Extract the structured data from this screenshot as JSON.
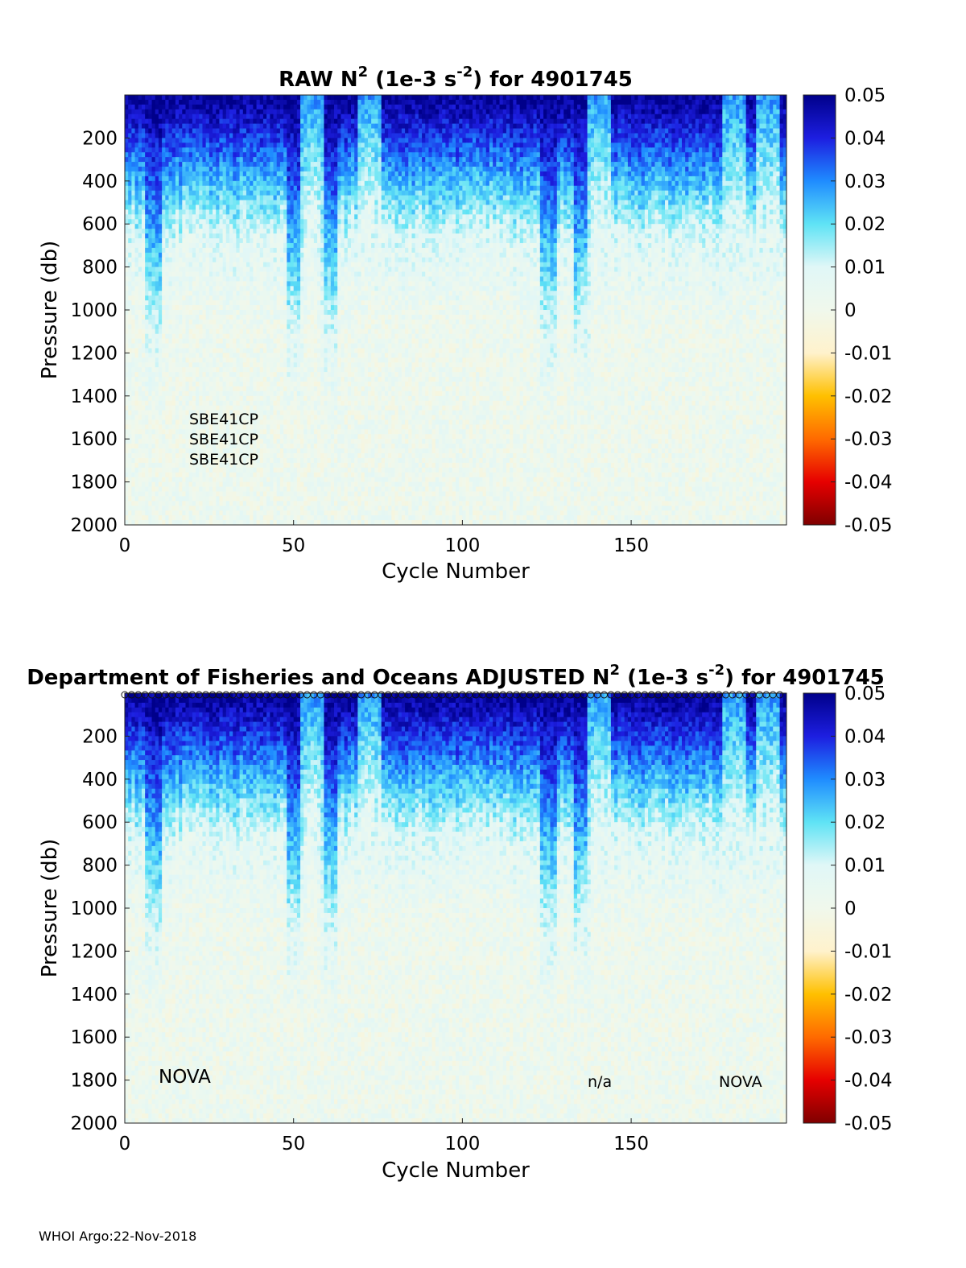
{
  "footer": "WHOI Argo:22-Nov-2018",
  "colormap": {
    "name": "jet-like diverging",
    "stops": [
      "#7f0000",
      "#e60000",
      "#ff6a00",
      "#ffc000",
      "#fff2cc",
      "#f0f8ec",
      "#e0f7f7",
      "#5fe3f5",
      "#1f8cff",
      "#1d1ee0",
      "#00008a"
    ]
  },
  "chart_data": [
    {
      "type": "heatmap",
      "title": {
        "prefix": "RAW N",
        "sup1": "2",
        "middle": " (1e-3 s",
        "sup2": "-2",
        "suffix": ") for 4901745"
      },
      "xlabel": "Cycle Number",
      "ylabel": "Pressure (db)",
      "xlim": [
        0,
        196
      ],
      "ylim": [
        2000,
        0
      ],
      "x_ticks": [
        0,
        50,
        100,
        150
      ],
      "y_ticks": [
        200,
        400,
        600,
        800,
        1000,
        1200,
        1400,
        1600,
        1800,
        2000
      ],
      "colorbar": {
        "min": -0.05,
        "max": 0.05,
        "ticks": [
          "0.05",
          "0.04",
          "0.03",
          "0.02",
          "0.01",
          "0",
          "-0.01",
          "-0.02",
          "-0.03",
          "-0.04",
          "-0.05"
        ]
      },
      "sensor_labels": [
        "SBE41CP",
        "SBE41CP",
        "SBE41CP"
      ],
      "profile_summary": {
        "surface_value": 0.05,
        "deep_value": 0.002,
        "strong_stratification_depth_db": 600,
        "notable_deep_feature_cycles": [
          8,
          50,
          60,
          125,
          135
        ],
        "low_stratification_cycles_near_surface": [
          55,
          72,
          140,
          180,
          190
        ]
      }
    },
    {
      "type": "heatmap",
      "title": {
        "prefix": "Department of Fisheries and Oceans  ADJUSTED N",
        "sup1": "2",
        "middle": " (1e-3 s",
        "sup2": "-2",
        "suffix": ") for 4901745"
      },
      "xlabel": "Cycle Number",
      "ylabel": "Pressure (db)",
      "xlim": [
        0,
        196
      ],
      "ylim": [
        2000,
        0
      ],
      "x_ticks": [
        0,
        50,
        100,
        150
      ],
      "y_ticks": [
        200,
        400,
        600,
        800,
        1000,
        1200,
        1400,
        1600,
        1800,
        2000
      ],
      "colorbar": {
        "min": -0.05,
        "max": 0.05,
        "ticks": [
          "0.05",
          "0.04",
          "0.03",
          "0.02",
          "0.01",
          "0",
          "-0.01",
          "-0.02",
          "-0.03",
          "-0.04",
          "-0.05"
        ]
      },
      "annotations": [
        "NOVA",
        "n/a",
        "NOVA"
      ],
      "profile_summary": {
        "surface_value": 0.05,
        "deep_value": 0.002,
        "strong_stratification_depth_db": 600,
        "notable_deep_feature_cycles": [
          8,
          50,
          60,
          125,
          135
        ],
        "low_stratification_cycles_near_surface": [
          55,
          72,
          140,
          180,
          190
        ]
      }
    }
  ]
}
